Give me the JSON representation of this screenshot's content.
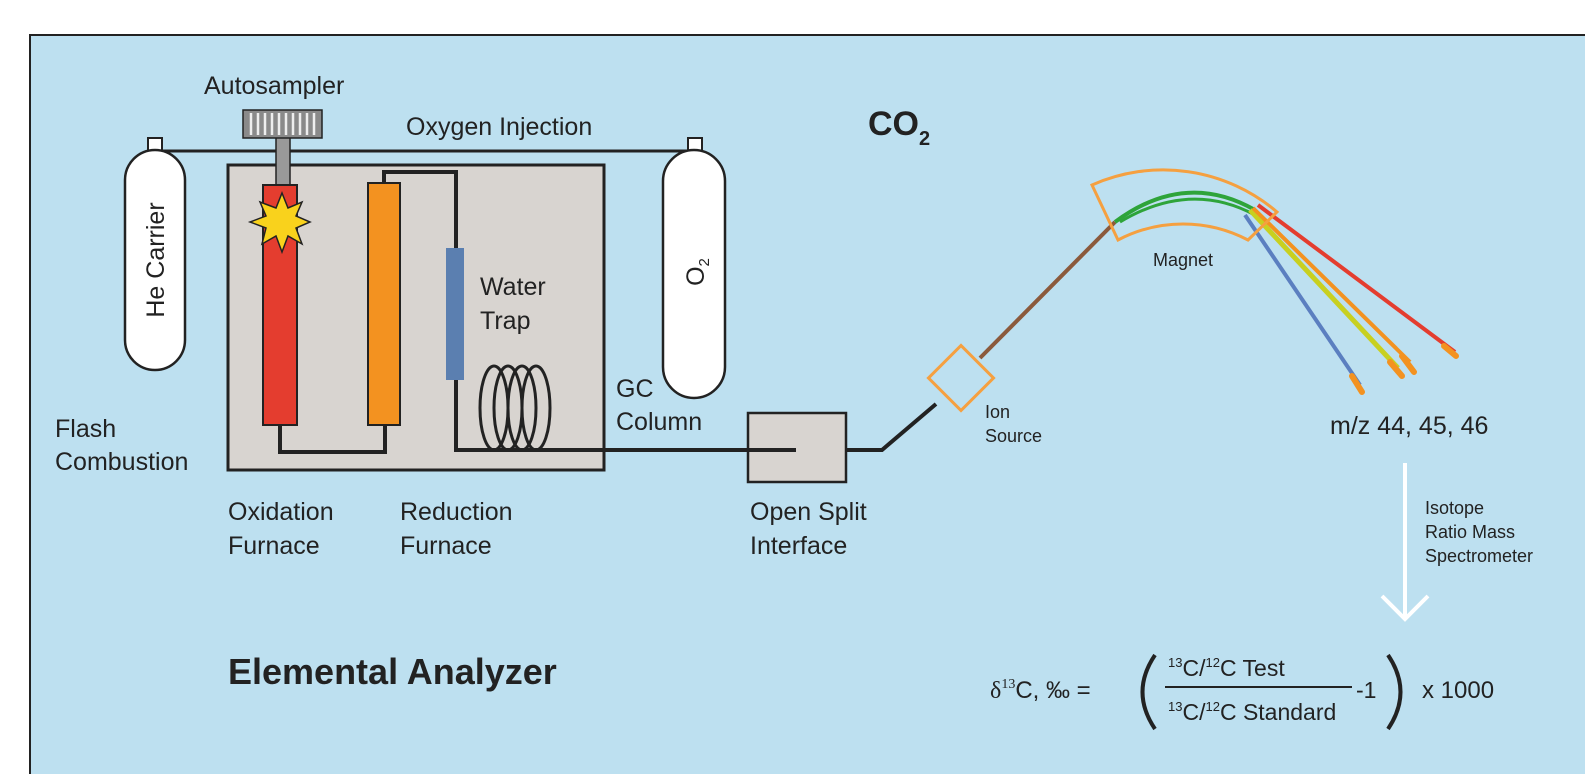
{
  "autosampler": "Autosampler",
  "oxygen_injection": "Oxygen Injection",
  "he_carrier": "He Carrier",
  "o2": {
    "symbol": "O",
    "subscript": "2"
  },
  "co2": {
    "symbol": "CO",
    "subscript": "2"
  },
  "water_trap": [
    "Water",
    "Trap"
  ],
  "gc_column": [
    "GC",
    "Column"
  ],
  "flash_combustion": [
    "Flash",
    "Combustion"
  ],
  "oxidation_furnace": [
    "Oxidation",
    "Furnace"
  ],
  "reduction_furnace": [
    "Reduction",
    "Furnace"
  ],
  "open_split_interface": [
    "Open Split",
    "Interface"
  ],
  "ion_source": [
    "Ion",
    "Source"
  ],
  "magnet": "Magnet",
  "mz": "m/z 44, 45, 46",
  "irms": [
    "Isotope",
    "Ratio Mass",
    "Spectrometer"
  ],
  "title": "Elemental Analyzer",
  "formula": {
    "lhs": {
      "symbol": "δ",
      "mass": "13",
      "rest": "C, ‰ ="
    },
    "numerator": {
      "mass1": "13",
      "el1": "C/",
      "mass2": "12",
      "el2": "C Test"
    },
    "denominator": {
      "mass1": "13",
      "el1": "C/",
      "mass2": "12",
      "el2": "C Standard"
    },
    "minus": "-1",
    "factor": "x 1000"
  }
}
